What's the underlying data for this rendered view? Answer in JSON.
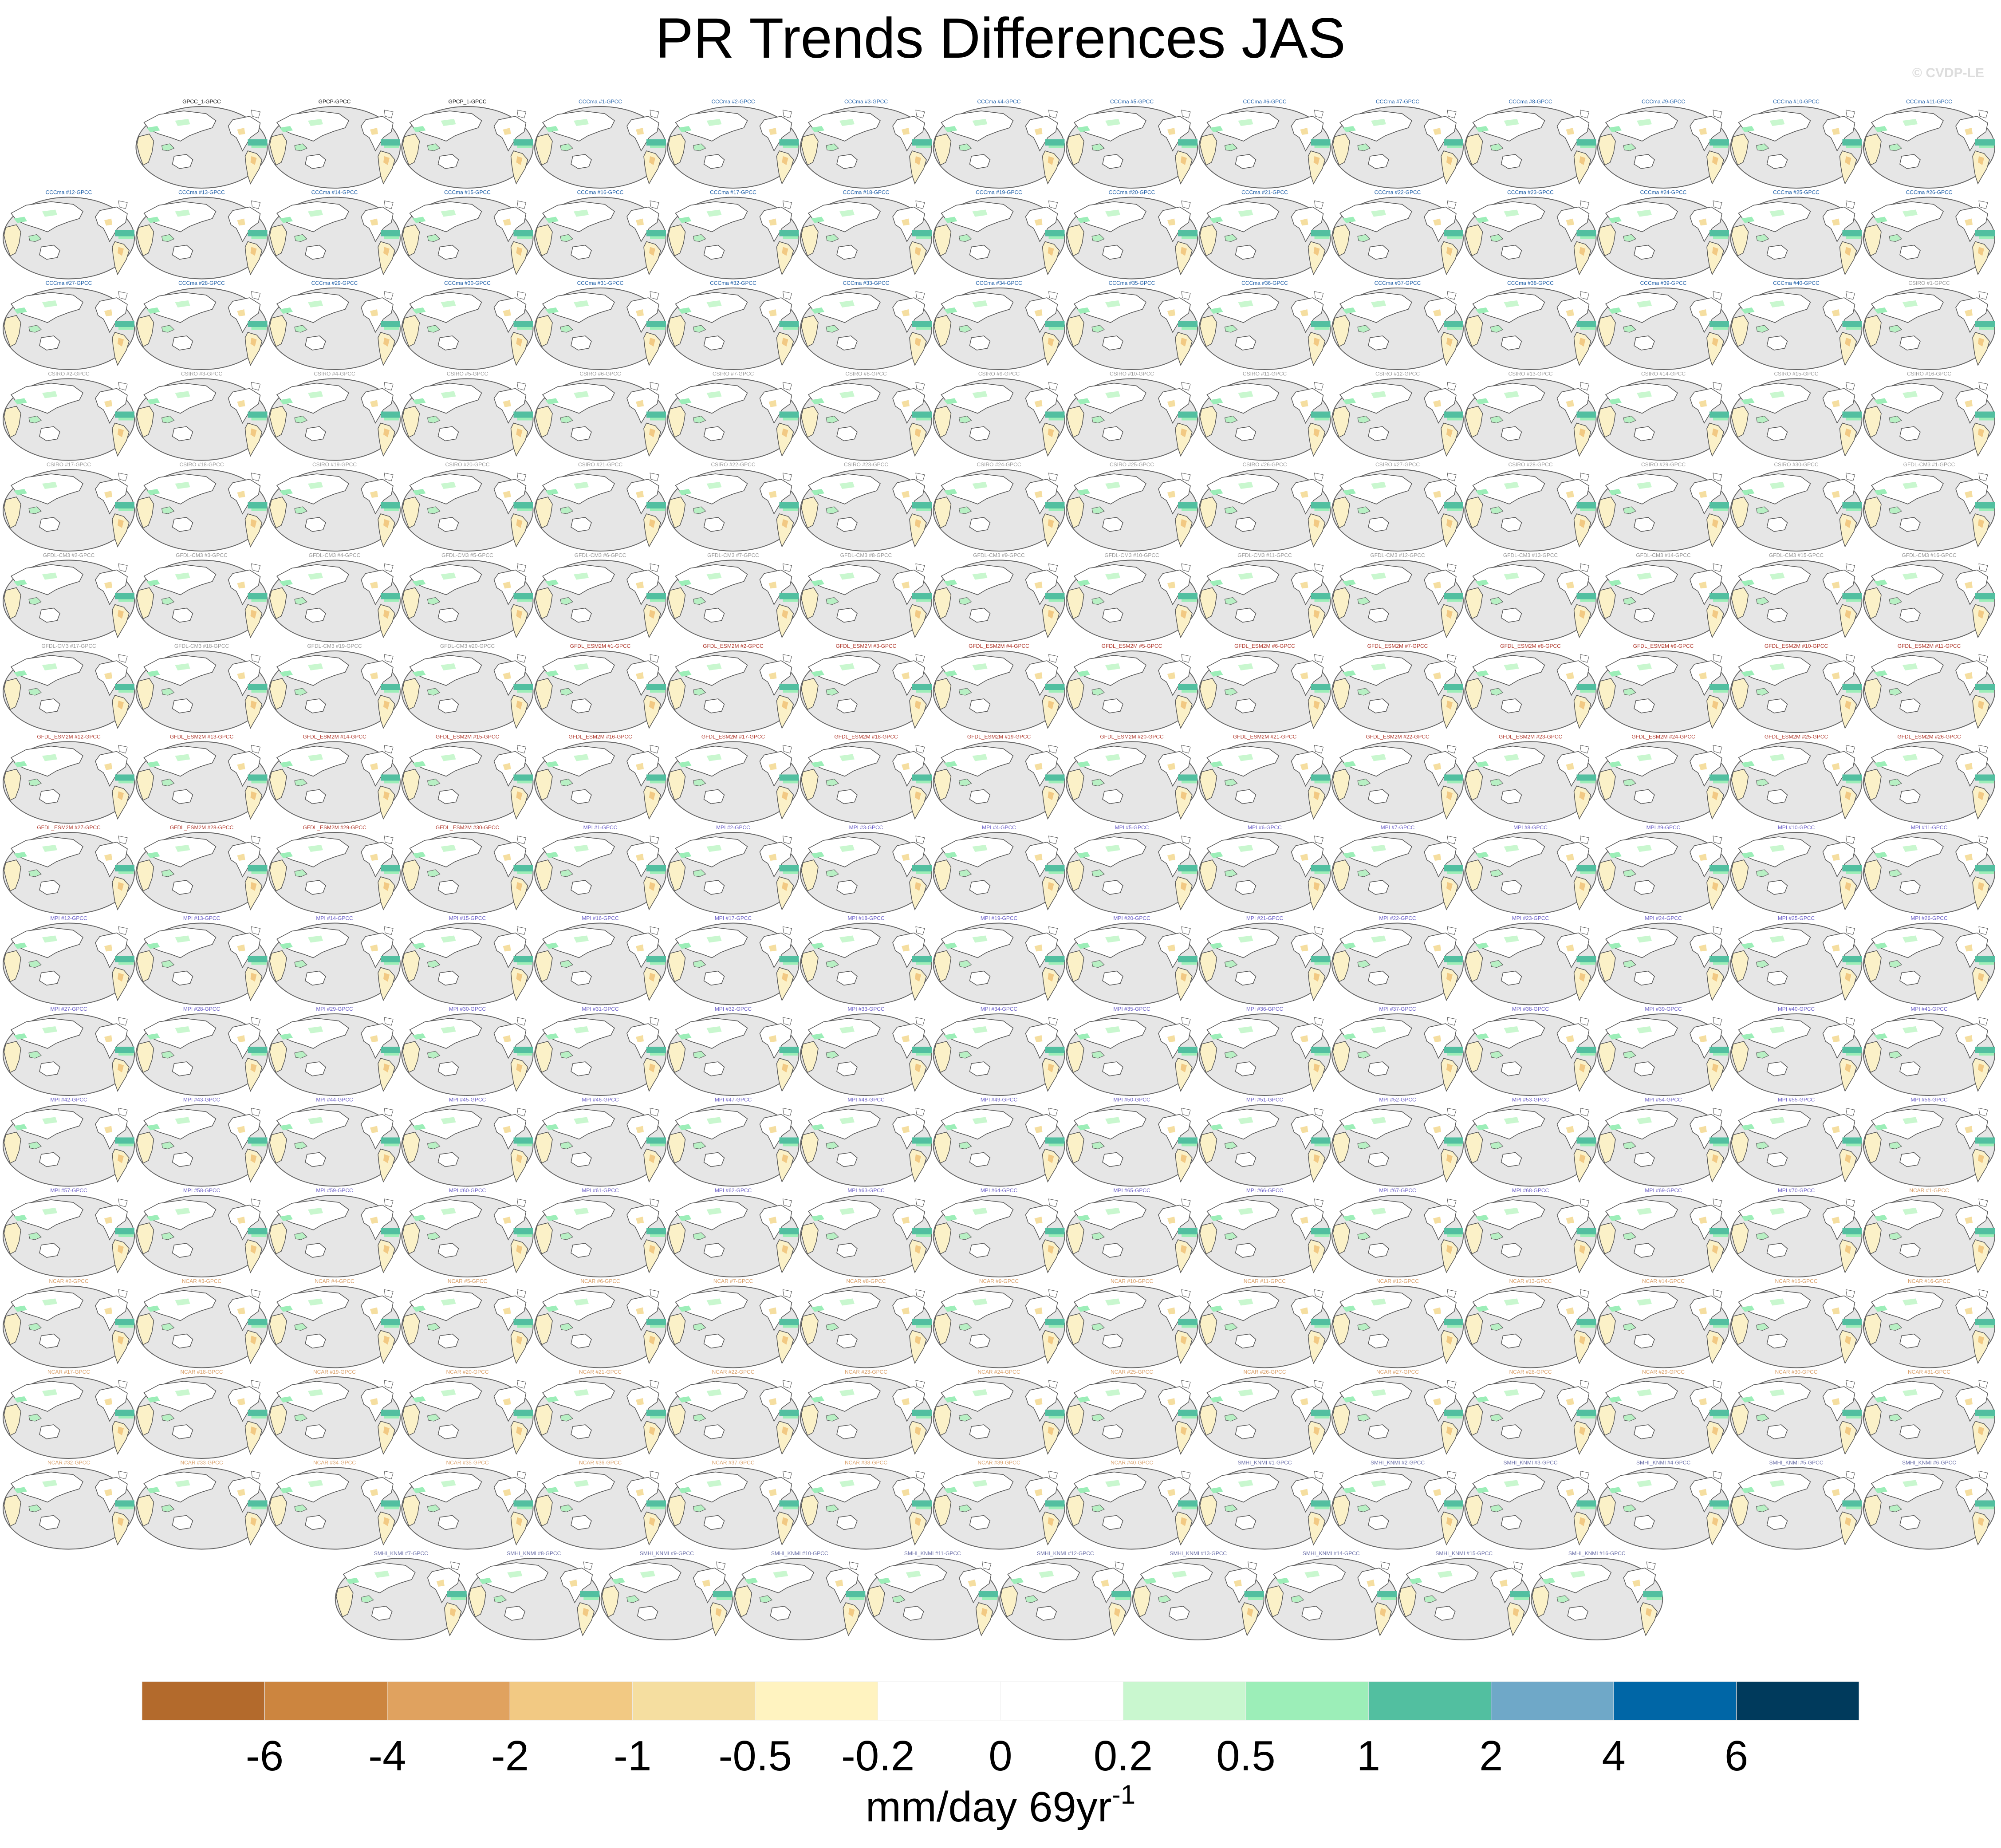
{
  "title": "PR Trends Differences JAS",
  "copyright": "© CVDP-LE",
  "chart_data": {
    "type": "heatmap",
    "title": "PR Trends Differences JAS",
    "description_kind": "small multiples of global trend-difference maps",
    "rows": [
      {
        "indent": 1,
        "panels": [
          "GPCC_1-GPCC",
          "GPCP-GPCC",
          "GPCP_1-GPCC",
          "CCCma #1-GPCC",
          "CCCma #2-GPCC",
          "CCCma #3-GPCC",
          "CCCma #4-GPCC",
          "CCCma #5-GPCC",
          "CCCma #6-GPCC",
          "CCCma #7-GPCC",
          "CCCma #8-GPCC",
          "CCCma #9-GPCC",
          "CCCma #10-GPCC",
          "CCCma #11-GPCC"
        ]
      },
      {
        "indent": 0,
        "panels": [
          "CCCma #12-GPCC",
          "CCCma #13-GPCC",
          "CCCma #14-GPCC",
          "CCCma #15-GPCC",
          "CCCma #16-GPCC",
          "CCCma #17-GPCC",
          "CCCma #18-GPCC",
          "CCCma #19-GPCC",
          "CCCma #20-GPCC",
          "CCCma #21-GPCC",
          "CCCma #22-GPCC",
          "CCCma #23-GPCC",
          "CCCma #24-GPCC",
          "CCCma #25-GPCC",
          "CCCma #26-GPCC"
        ]
      },
      {
        "indent": 0,
        "panels": [
          "CCCma #27-GPCC",
          "CCCma #28-GPCC",
          "CCCma #29-GPCC",
          "CCCma #30-GPCC",
          "CCCma #31-GPCC",
          "CCCma #32-GPCC",
          "CCCma #33-GPCC",
          "CCCma #34-GPCC",
          "CCCma #35-GPCC",
          "CCCma #36-GPCC",
          "CCCma #37-GPCC",
          "CCCma #38-GPCC",
          "CCCma #39-GPCC",
          "CCCma #40-GPCC",
          "CSIRO #1-GPCC"
        ]
      },
      {
        "indent": 0,
        "panels": [
          "CSIRO #2-GPCC",
          "CSIRO #3-GPCC",
          "CSIRO #4-GPCC",
          "CSIRO #5-GPCC",
          "CSIRO #6-GPCC",
          "CSIRO #7-GPCC",
          "CSIRO #8-GPCC",
          "CSIRO #9-GPCC",
          "CSIRO #10-GPCC",
          "CSIRO #11-GPCC",
          "CSIRO #12-GPCC",
          "CSIRO #13-GPCC",
          "CSIRO #14-GPCC",
          "CSIRO #15-GPCC",
          "CSIRO #16-GPCC"
        ]
      },
      {
        "indent": 0,
        "panels": [
          "CSIRO #17-GPCC",
          "CSIRO #18-GPCC",
          "CSIRO #19-GPCC",
          "CSIRO #20-GPCC",
          "CSIRO #21-GPCC",
          "CSIRO #22-GPCC",
          "CSIRO #23-GPCC",
          "CSIRO #24-GPCC",
          "CSIRO #25-GPCC",
          "CSIRO #26-GPCC",
          "CSIRO #27-GPCC",
          "CSIRO #28-GPCC",
          "CSIRO #29-GPCC",
          "CSIRO #30-GPCC",
          "GFDL-CM3 #1-GPCC"
        ]
      },
      {
        "indent": 0,
        "panels": [
          "GFDL-CM3 #2-GPCC",
          "GFDL-CM3 #3-GPCC",
          "GFDL-CM3 #4-GPCC",
          "GFDL-CM3 #5-GPCC",
          "GFDL-CM3 #6-GPCC",
          "GFDL-CM3 #7-GPCC",
          "GFDL-CM3 #8-GPCC",
          "GFDL-CM3 #9-GPCC",
          "GFDL-CM3 #10-GPCC",
          "GFDL-CM3 #11-GPCC",
          "GFDL-CM3 #12-GPCC",
          "GFDL-CM3 #13-GPCC",
          "GFDL-CM3 #14-GPCC",
          "GFDL-CM3 #15-GPCC",
          "GFDL-CM3 #16-GPCC"
        ]
      },
      {
        "indent": 0,
        "panels": [
          "GFDL-CM3 #17-GPCC",
          "GFDL-CM3 #18-GPCC",
          "GFDL-CM3 #19-GPCC",
          "GFDL-CM3 #20-GPCC",
          "GFDL_ESM2M #1-GPCC",
          "GFDL_ESM2M #2-GPCC",
          "GFDL_ESM2M #3-GPCC",
          "GFDL_ESM2M #4-GPCC",
          "GFDL_ESM2M #5-GPCC",
          "GFDL_ESM2M #6-GPCC",
          "GFDL_ESM2M #7-GPCC",
          "GFDL_ESM2M #8-GPCC",
          "GFDL_ESM2M #9-GPCC",
          "GFDL_ESM2M #10-GPCC",
          "GFDL_ESM2M #11-GPCC"
        ]
      },
      {
        "indent": 0,
        "panels": [
          "GFDL_ESM2M #12-GPCC",
          "GFDL_ESM2M #13-GPCC",
          "GFDL_ESM2M #14-GPCC",
          "GFDL_ESM2M #15-GPCC",
          "GFDL_ESM2M #16-GPCC",
          "GFDL_ESM2M #17-GPCC",
          "GFDL_ESM2M #18-GPCC",
          "GFDL_ESM2M #19-GPCC",
          "GFDL_ESM2M #20-GPCC",
          "GFDL_ESM2M #21-GPCC",
          "GFDL_ESM2M #22-GPCC",
          "GFDL_ESM2M #23-GPCC",
          "GFDL_ESM2M #24-GPCC",
          "GFDL_ESM2M #25-GPCC",
          "GFDL_ESM2M #26-GPCC"
        ]
      },
      {
        "indent": 0,
        "panels": [
          "GFDL_ESM2M #27-GPCC",
          "GFDL_ESM2M #28-GPCC",
          "GFDL_ESM2M #29-GPCC",
          "GFDL_ESM2M #30-GPCC",
          "MPI #1-GPCC",
          "MPI #2-GPCC",
          "MPI #3-GPCC",
          "MPI #4-GPCC",
          "MPI #5-GPCC",
          "MPI #6-GPCC",
          "MPI #7-GPCC",
          "MPI #8-GPCC",
          "MPI #9-GPCC",
          "MPI #10-GPCC",
          "MPI #11-GPCC"
        ]
      },
      {
        "indent": 0,
        "panels": [
          "MPI #12-GPCC",
          "MPI #13-GPCC",
          "MPI #14-GPCC",
          "MPI #15-GPCC",
          "MPI #16-GPCC",
          "MPI #17-GPCC",
          "MPI #18-GPCC",
          "MPI #19-GPCC",
          "MPI #20-GPCC",
          "MPI #21-GPCC",
          "MPI #22-GPCC",
          "MPI #23-GPCC",
          "MPI #24-GPCC",
          "MPI #25-GPCC",
          "MPI #26-GPCC"
        ]
      },
      {
        "indent": 0,
        "panels": [
          "MPI #27-GPCC",
          "MPI #28-GPCC",
          "MPI #29-GPCC",
          "MPI #30-GPCC",
          "MPI #31-GPCC",
          "MPI #32-GPCC",
          "MPI #33-GPCC",
          "MPI #34-GPCC",
          "MPI #35-GPCC",
          "MPI #36-GPCC",
          "MPI #37-GPCC",
          "MPI #38-GPCC",
          "MPI #39-GPCC",
          "MPI #40-GPCC",
          "MPI #41-GPCC"
        ]
      },
      {
        "indent": 0,
        "panels": [
          "MPI #42-GPCC",
          "MPI #43-GPCC",
          "MPI #44-GPCC",
          "MPI #45-GPCC",
          "MPI #46-GPCC",
          "MPI #47-GPCC",
          "MPI #48-GPCC",
          "MPI #49-GPCC",
          "MPI #50-GPCC",
          "MPI #51-GPCC",
          "MPI #52-GPCC",
          "MPI #53-GPCC",
          "MPI #54-GPCC",
          "MPI #55-GPCC",
          "MPI #56-GPCC"
        ]
      },
      {
        "indent": 0,
        "panels": [
          "MPI #57-GPCC",
          "MPI #58-GPCC",
          "MPI #59-GPCC",
          "MPI #60-GPCC",
          "MPI #61-GPCC",
          "MPI #62-GPCC",
          "MPI #63-GPCC",
          "MPI #64-GPCC",
          "MPI #65-GPCC",
          "MPI #66-GPCC",
          "MPI #67-GPCC",
          "MPI #68-GPCC",
          "MPI #69-GPCC",
          "MPI #70-GPCC",
          "NCAR #1-GPCC"
        ]
      },
      {
        "indent": 0,
        "panels": [
          "NCAR #2-GPCC",
          "NCAR #3-GPCC",
          "NCAR #4-GPCC",
          "NCAR #5-GPCC",
          "NCAR #6-GPCC",
          "NCAR #7-GPCC",
          "NCAR #8-GPCC",
          "NCAR #9-GPCC",
          "NCAR #10-GPCC",
          "NCAR #11-GPCC",
          "NCAR #12-GPCC",
          "NCAR #13-GPCC",
          "NCAR #14-GPCC",
          "NCAR #15-GPCC",
          "NCAR #16-GPCC"
        ]
      },
      {
        "indent": 0,
        "panels": [
          "NCAR #17-GPCC",
          "NCAR #18-GPCC",
          "NCAR #19-GPCC",
          "NCAR #20-GPCC",
          "NCAR #21-GPCC",
          "NCAR #22-GPCC",
          "NCAR #23-GPCC",
          "NCAR #24-GPCC",
          "NCAR #25-GPCC",
          "NCAR #26-GPCC",
          "NCAR #27-GPCC",
          "NCAR #28-GPCC",
          "NCAR #29-GPCC",
          "NCAR #30-GPCC",
          "NCAR #31-GPCC"
        ]
      },
      {
        "indent": 0,
        "panels": [
          "NCAR #32-GPCC",
          "NCAR #33-GPCC",
          "NCAR #34-GPCC",
          "NCAR #35-GPCC",
          "NCAR #36-GPCC",
          "NCAR #37-GPCC",
          "NCAR #38-GPCC",
          "NCAR #39-GPCC",
          "NCAR #40-GPCC",
          "SMHI_KNMI #1-GPCC",
          "SMHI_KNMI #2-GPCC",
          "SMHI_KNMI #3-GPCC",
          "SMHI_KNMI #4-GPCC",
          "SMHI_KNMI #5-GPCC",
          "SMHI_KNMI #6-GPCC"
        ]
      },
      {
        "indent": 2.5,
        "panels": [
          "SMHI_KNMI #7-GPCC",
          "SMHI_KNMI #8-GPCC",
          "SMHI_KNMI #9-GPCC",
          "SMHI_KNMI #10-GPCC",
          "SMHI_KNMI #11-GPCC",
          "SMHI_KNMI #12-GPCC",
          "SMHI_KNMI #13-GPCC",
          "SMHI_KNMI #14-GPCC",
          "SMHI_KNMI #15-GPCC",
          "SMHI_KNMI #16-GPCC"
        ]
      }
    ],
    "group_label_colors": {
      "GPCC": "#000000",
      "GPCP": "#000000",
      "CCCma": "#1f5fa8",
      "CSIRO": "#999999",
      "GFDL-CM3": "#999999",
      "GFDL_ESM2M": "#b03a2e",
      "MPI": "#6b5fc7",
      "NCAR": "#d9a06a",
      "SMHI_KNMI": "#6a6fa8"
    },
    "colorbar": {
      "colors": [
        "#b36a2c",
        "#cc853f",
        "#e0a25f",
        "#f2c983",
        "#f5dea0",
        "#fff3c0",
        "#ffffff",
        "#ffffff",
        "#c9f7cf",
        "#9ceeb8",
        "#52bfa0",
        "#6fa8c8",
        "#0066a6",
        "#003a5c"
      ],
      "tick_labels": [
        "-6",
        "-4",
        "-2",
        "-1",
        "-0.5",
        "-0.2",
        "0",
        "0.2",
        "0.5",
        "1",
        "2",
        "4",
        "6"
      ],
      "units": "mm/day 69yr",
      "units_superscript": "-1"
    }
  }
}
